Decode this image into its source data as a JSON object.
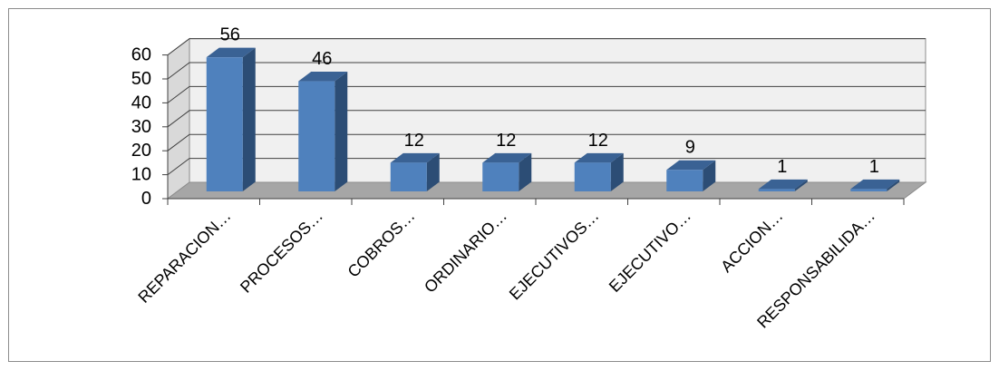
{
  "chart_data": {
    "type": "bar",
    "style": "3d-column",
    "categories": [
      "REPARACION…",
      "PROCESOS…",
      "COBROS…",
      "ORDINARIO…",
      "EJECUTIVOS…",
      "EJECUTIVO…",
      "ACCION…",
      "RESPONSABILIDA…"
    ],
    "values": [
      56,
      46,
      12,
      12,
      12,
      9,
      1,
      1
    ],
    "data_labels": [
      "56",
      "46",
      "12",
      "12",
      "12",
      "9",
      "1",
      "1"
    ],
    "ylim": [
      0,
      60
    ],
    "yticks": [
      0,
      10,
      20,
      30,
      40,
      50,
      60
    ],
    "ytick_labels": [
      "0",
      "10",
      "20",
      "30",
      "40",
      "50",
      "60"
    ],
    "title": "",
    "xlabel": "",
    "ylabel": "",
    "grid": true,
    "legend": "none",
    "colors": {
      "bar_front": "#4f81bd",
      "bar_side": "#2c4d75",
      "bar_top": "#3a6294",
      "back_wall": "#f0f0f0",
      "side_wall": "#d9d9d9",
      "floor": "#a6a6a6",
      "gridline": "#404040"
    }
  }
}
